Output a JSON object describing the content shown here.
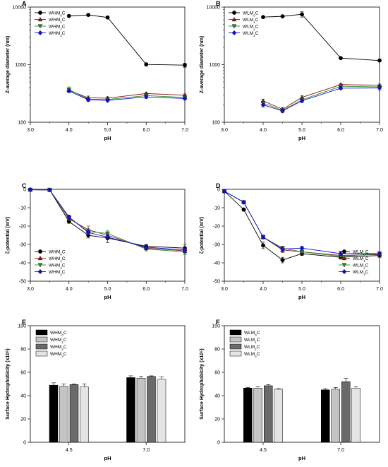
{
  "chart_data": [
    {
      "panel": "A",
      "type": "line",
      "xlabel": "pH",
      "ylabel": "Z-average diameter (nm)",
      "xlim": [
        3.0,
        7.0
      ],
      "ylim": [
        100,
        10000
      ],
      "yscale": "log",
      "xticks": [
        "3.0",
        "4.0",
        "5.0",
        "6.0",
        "7.0"
      ],
      "yticks": [
        "100",
        "1000",
        "10000"
      ],
      "legend": "top-left",
      "series": [
        {
          "name": "WHM0C",
          "x": [
            4.0,
            4.5,
            5.0,
            6.0,
            7.0
          ],
          "values": [
            7000,
            7300,
            6600,
            1010,
            980
          ],
          "err": [
            0,
            0,
            0,
            60,
            80
          ]
        },
        {
          "name": "WHM1C",
          "x": [
            4.0,
            4.5,
            5.0,
            6.0,
            7.0
          ],
          "values": [
            360,
            265,
            262,
            315,
            295
          ],
          "err": [
            30,
            20,
            15,
            15,
            15
          ]
        },
        {
          "name": "WHM2C",
          "x": [
            4.0,
            4.5,
            5.0,
            6.0,
            7.0
          ],
          "values": [
            370,
            250,
            248,
            290,
            270
          ],
          "err": [
            40,
            15,
            15,
            15,
            15
          ]
        },
        {
          "name": "WHM3C",
          "x": [
            4.0,
            4.5,
            5.0,
            6.0,
            7.0
          ],
          "values": [
            350,
            245,
            240,
            275,
            258
          ],
          "err": [
            20,
            15,
            15,
            15,
            15
          ]
        }
      ]
    },
    {
      "panel": "B",
      "type": "line",
      "xlabel": "pH",
      "ylabel": "Z-average diameter (nm)",
      "xlim": [
        3.0,
        7.0
      ],
      "ylim": [
        100,
        10000
      ],
      "yscale": "log",
      "xticks": [
        "3.0",
        "4.0",
        "5.0",
        "6.0",
        "7.0"
      ],
      "yticks": [
        "100",
        "1000",
        "10000"
      ],
      "legend": "top-left",
      "series": [
        {
          "name": "WLM0C",
          "x": [
            4.0,
            4.5,
            5.0,
            6.0,
            7.0
          ],
          "values": [
            6700,
            6900,
            7500,
            1300,
            1180
          ],
          "err": [
            0,
            0,
            800,
            0,
            0
          ]
        },
        {
          "name": "WLM1C",
          "x": [
            4.0,
            4.5,
            5.0,
            6.0,
            7.0
          ],
          "values": [
            235,
            168,
            270,
            450,
            440
          ],
          "err": [
            15,
            10,
            20,
            20,
            20
          ]
        },
        {
          "name": "WLM2C",
          "x": [
            4.0,
            4.5,
            5.0,
            6.0,
            7.0
          ],
          "values": [
            215,
            160,
            245,
            420,
            410
          ],
          "err": [
            15,
            10,
            15,
            20,
            20
          ]
        },
        {
          "name": "WLM3C",
          "x": [
            4.0,
            4.5,
            5.0,
            6.0,
            7.0
          ],
          "values": [
            200,
            157,
            235,
            390,
            395
          ],
          "err": [
            15,
            10,
            15,
            20,
            30
          ]
        }
      ]
    },
    {
      "panel": "C",
      "type": "line",
      "xlabel": "pH",
      "ylabel": "ζ-potential (mV)",
      "xlim": [
        3.0,
        7.0
      ],
      "ylim": [
        -50,
        0
      ],
      "xticks": [
        "3.0",
        "4.0",
        "5.0",
        "6.0",
        "7.0"
      ],
      "yticks": [
        "0",
        "-10",
        "-20",
        "-30",
        "-40",
        "-50"
      ],
      "legend": "bottom-left",
      "series": [
        {
          "name": "WHM0C",
          "x": [
            3.0,
            3.5,
            4.0,
            4.5,
            5.0,
            6.0,
            7.0
          ],
          "values": [
            -0.2,
            -0.3,
            -17.5,
            -25,
            -26.5,
            -31,
            -32
          ],
          "err": [
            0.5,
            0.5,
            1,
            1.5,
            2.5,
            1,
            2
          ]
        },
        {
          "name": "WHM1C",
          "x": [
            3.0,
            3.5,
            4.0,
            4.5,
            5.0,
            6.0,
            7.0
          ],
          "values": [
            -0.2,
            -0.3,
            -16,
            -22,
            -25,
            -32,
            -33.5
          ],
          "err": [
            0.5,
            0.5,
            1,
            2,
            1.5,
            1,
            1.5
          ]
        },
        {
          "name": "WHM2C",
          "x": [
            3.0,
            3.5,
            4.0,
            4.5,
            5.0,
            6.0,
            7.0
          ],
          "values": [
            -0.2,
            -0.3,
            -15.5,
            -23,
            -24,
            -32.5,
            -34
          ],
          "err": [
            0.5,
            0.5,
            1,
            1.5,
            1.5,
            1,
            1.5
          ]
        },
        {
          "name": "WHM3C",
          "x": [
            3.0,
            3.5,
            4.0,
            4.5,
            5.0,
            6.0,
            7.0
          ],
          "values": [
            -0.2,
            -0.3,
            -15,
            -23.5,
            -26,
            -31.5,
            -33
          ],
          "err": [
            0.5,
            0.5,
            1,
            1.5,
            1.5,
            1,
            1.5
          ]
        }
      ]
    },
    {
      "panel": "D",
      "type": "line",
      "xlabel": "pH",
      "ylabel": "ζ-potential (mV)",
      "xlim": [
        3.0,
        7.0
      ],
      "ylim": [
        -50,
        0
      ],
      "xticks": [
        "3.0",
        "4.0",
        "5.0",
        "6.0",
        "7.0"
      ],
      "yticks": [
        "0",
        "-10",
        "-20",
        "-30",
        "-40",
        "-50"
      ],
      "legend": "bottom-right",
      "series": [
        {
          "name": "WLM0C",
          "x": [
            3.0,
            3.5,
            4.0,
            4.5,
            5.0,
            6.0,
            7.0
          ],
          "values": [
            -1,
            -11,
            -30.5,
            -38.5,
            -35,
            -37,
            -36
          ],
          "err": [
            0.5,
            0.8,
            1.8,
            1.5,
            1,
            1,
            1
          ]
        },
        {
          "name": "WLM1C",
          "x": [
            3.0,
            3.5,
            4.0,
            4.5,
            5.0,
            6.0,
            7.0
          ],
          "values": [
            -1,
            -7,
            -26,
            -33,
            -34,
            -36,
            -35.5
          ],
          "err": [
            0.5,
            0.5,
            1,
            1.5,
            1,
            1,
            1
          ]
        },
        {
          "name": "WLM2C",
          "x": [
            3.0,
            3.5,
            4.0,
            4.5,
            5.0,
            6.0,
            7.0
          ],
          "values": [
            -1,
            -7,
            -26,
            -32,
            -34,
            -36.5,
            -35
          ],
          "err": [
            0.5,
            0.5,
            1,
            1,
            1,
            1,
            1
          ]
        },
        {
          "name": "WLM3C",
          "x": [
            3.0,
            3.5,
            4.0,
            4.5,
            5.0,
            6.0,
            7.0
          ],
          "values": [
            -1,
            -7,
            -26,
            -32.5,
            -32,
            -35,
            -35
          ],
          "err": [
            0.5,
            0.5,
            1,
            1,
            1,
            1,
            1
          ]
        }
      ]
    },
    {
      "panel": "E",
      "type": "bar",
      "xlabel": "pH",
      "ylabel": "Surface Hydrophobicity (x10⁵)",
      "ylim": [
        0,
        100
      ],
      "categories": [
        "4.5",
        "7.0"
      ],
      "yticks": [
        "0",
        "20",
        "40",
        "60",
        "80",
        "100"
      ],
      "legend": "top-left",
      "series": [
        {
          "name": "WHM0C",
          "values": [
            49,
            55.5
          ],
          "err": [
            2,
            1.5
          ]
        },
        {
          "name": "WHM1C",
          "values": [
            48,
            55
          ],
          "err": [
            2,
            1.5
          ]
        },
        {
          "name": "WHM2C",
          "values": [
            49.5,
            56.5
          ],
          "err": [
            0.5,
            0.5
          ]
        },
        {
          "name": "WHM3C",
          "values": [
            47.5,
            54
          ],
          "err": [
            2.5,
            2
          ]
        }
      ]
    },
    {
      "panel": "F",
      "type": "bar",
      "xlabel": "pH",
      "ylabel": "Surface Hydrophobicity (x10⁵)",
      "ylim": [
        0,
        100
      ],
      "categories": [
        "4.5",
        "7.0"
      ],
      "yticks": [
        "0",
        "20",
        "40",
        "60",
        "80",
        "100"
      ],
      "legend": "top-left",
      "series": [
        {
          "name": "WLM0C",
          "values": [
            46.5,
            45
          ],
          "err": [
            0.5,
            1
          ]
        },
        {
          "name": "WLM1C",
          "values": [
            46.5,
            45.5
          ],
          "err": [
            1,
            1.5
          ]
        },
        {
          "name": "WLM2C",
          "values": [
            48.5,
            52
          ],
          "err": [
            1,
            3
          ]
        },
        {
          "name": "WLM3C",
          "values": [
            45.5,
            46.5
          ],
          "err": [
            0.5,
            1
          ]
        }
      ]
    }
  ],
  "styles": {
    "line_series": [
      {
        "color": "#000000",
        "marker": "circle"
      },
      {
        "color": "#8b1a1a",
        "marker": "triangle-up"
      },
      {
        "color": "#2e8b2e",
        "marker": "triangle-down"
      },
      {
        "color": "#1010e0",
        "marker": "diamond"
      }
    ],
    "bar_fills": [
      "#000000",
      "#c4c4c4",
      "#6a6a6a",
      "#e4e4e4"
    ]
  }
}
